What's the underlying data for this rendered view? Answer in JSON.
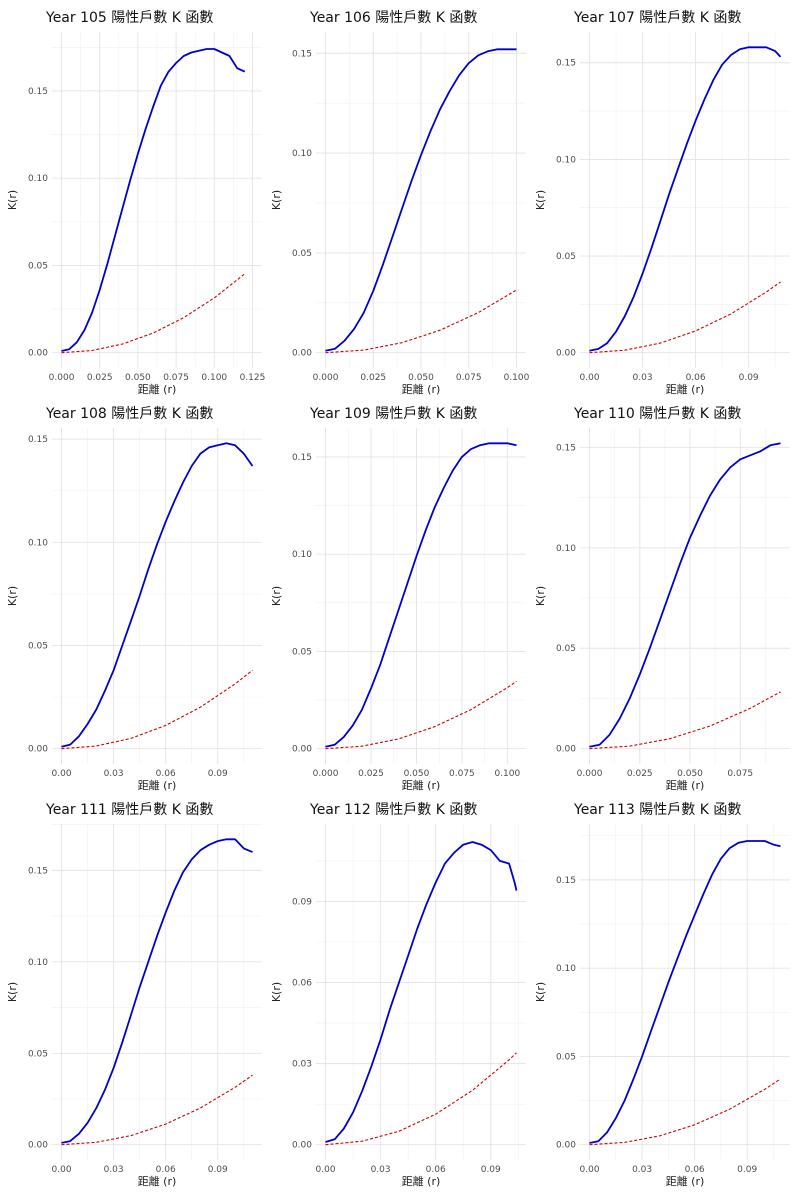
{
  "chart_data": [
    {
      "type": "line",
      "title": "Year 105 陽性戶數 K 函數",
      "xlabel": "距離 (r)",
      "ylabel": "K(r)",
      "xlim": [
        0,
        0.125
      ],
      "ylim": [
        0,
        0.175
      ],
      "xticks": [
        0,
        0.025,
        0.05,
        0.075,
        0.1,
        0.125
      ],
      "xtick_labels": [
        "0.000",
        "0.025",
        "0.050",
        "0.075",
        "0.100",
        "0.125"
      ],
      "yticks": [
        0,
        0.05,
        0.1,
        0.15
      ],
      "ytick_labels": [
        "0.00",
        "0.05",
        "0.10",
        "0.15"
      ],
      "grid": true,
      "legend": false,
      "series": [
        {
          "color": "#0000cc",
          "style": "solid",
          "x": [
            0.0,
            0.005,
            0.01,
            0.015,
            0.02,
            0.025,
            0.03,
            0.035,
            0.04,
            0.045,
            0.05,
            0.055,
            0.06,
            0.065,
            0.07,
            0.075,
            0.08,
            0.085,
            0.09,
            0.095,
            0.1,
            0.105,
            0.11,
            0.115,
            0.12
          ],
          "y": [
            0.001,
            0.002,
            0.006,
            0.013,
            0.023,
            0.036,
            0.051,
            0.067,
            0.083,
            0.099,
            0.114,
            0.128,
            0.141,
            0.153,
            0.161,
            0.166,
            0.17,
            0.172,
            0.173,
            0.174,
            0.174,
            0.172,
            0.17,
            0.163,
            0.161
          ]
        },
        {
          "color": "#cc0000",
          "style": "dashed",
          "x": [
            0.0,
            0.02,
            0.04,
            0.06,
            0.08,
            0.1,
            0.12
          ],
          "y": [
            0.0,
            0.0013,
            0.005,
            0.0113,
            0.0201,
            0.0314,
            0.0452
          ]
        }
      ]
    },
    {
      "type": "line",
      "title": "Year 106 陽性戶數 K 函數",
      "xlabel": "距離 (r)",
      "ylabel": "K(r)",
      "xlim": [
        0,
        0.1
      ],
      "ylim": [
        0,
        0.153
      ],
      "xticks": [
        0,
        0.025,
        0.05,
        0.075,
        0.1
      ],
      "xtick_labels": [
        "0.000",
        "0.025",
        "0.050",
        "0.075",
        "0.100"
      ],
      "yticks": [
        0,
        0.05,
        0.1,
        0.15
      ],
      "ytick_labels": [
        "0.00",
        "0.05",
        "0.10",
        "0.15"
      ],
      "grid": true,
      "legend": false,
      "series": [
        {
          "color": "#0000cc",
          "style": "solid",
          "x": [
            0.0,
            0.005,
            0.01,
            0.015,
            0.02,
            0.025,
            0.03,
            0.035,
            0.04,
            0.045,
            0.05,
            0.055,
            0.06,
            0.065,
            0.07,
            0.075,
            0.08,
            0.085,
            0.09,
            0.095,
            0.1
          ],
          "y": [
            0.001,
            0.002,
            0.006,
            0.012,
            0.02,
            0.031,
            0.044,
            0.058,
            0.072,
            0.086,
            0.099,
            0.111,
            0.122,
            0.131,
            0.139,
            0.145,
            0.149,
            0.151,
            0.152,
            0.152,
            0.152
          ]
        },
        {
          "color": "#cc0000",
          "style": "dashed",
          "x": [
            0.0,
            0.02,
            0.04,
            0.06,
            0.08,
            0.1
          ],
          "y": [
            0.0,
            0.0013,
            0.005,
            0.0113,
            0.0201,
            0.0314
          ]
        }
      ]
    },
    {
      "type": "line",
      "title": "Year 107 陽性戶數 K 函數",
      "xlabel": "距離 (r)",
      "ylabel": "K(r)",
      "xlim": [
        0,
        0.108
      ],
      "ylim": [
        0,
        0.158
      ],
      "xticks": [
        0,
        0.03,
        0.06,
        0.09
      ],
      "xtick_labels": [
        "0.00",
        "0.03",
        "0.06",
        "0.09"
      ],
      "yticks": [
        0,
        0.05,
        0.1,
        0.15
      ],
      "ytick_labels": [
        "0.00",
        "0.05",
        "0.10",
        "0.15"
      ],
      "grid": true,
      "legend": false,
      "series": [
        {
          "color": "#0000cc",
          "style": "solid",
          "x": [
            0.0,
            0.005,
            0.01,
            0.015,
            0.02,
            0.025,
            0.03,
            0.035,
            0.04,
            0.045,
            0.05,
            0.055,
            0.06,
            0.065,
            0.07,
            0.075,
            0.08,
            0.085,
            0.09,
            0.095,
            0.1,
            0.105,
            0.108
          ],
          "y": [
            0.001,
            0.002,
            0.005,
            0.011,
            0.019,
            0.029,
            0.041,
            0.054,
            0.068,
            0.082,
            0.095,
            0.108,
            0.12,
            0.131,
            0.141,
            0.149,
            0.154,
            0.157,
            0.158,
            0.158,
            0.158,
            0.156,
            0.153
          ]
        },
        {
          "color": "#cc0000",
          "style": "dashed",
          "x": [
            0.0,
            0.02,
            0.04,
            0.06,
            0.08,
            0.1,
            0.108
          ],
          "y": [
            0.0,
            0.0013,
            0.005,
            0.0113,
            0.0201,
            0.0314,
            0.0366
          ]
        }
      ]
    },
    {
      "type": "line",
      "title": "Year 108 陽性戶數 K 函數",
      "xlabel": "距離 (r)",
      "ylabel": "K(r)",
      "xlim": [
        0,
        0.11
      ],
      "ylim": [
        0,
        0.148
      ],
      "xticks": [
        0,
        0.03,
        0.06,
        0.09
      ],
      "xtick_labels": [
        "0.00",
        "0.03",
        "0.06",
        "0.09"
      ],
      "yticks": [
        0,
        0.05,
        0.1,
        0.15
      ],
      "ytick_labels": [
        "0.00",
        "0.05",
        "0.10",
        "0.15"
      ],
      "grid": true,
      "legend": false,
      "series": [
        {
          "color": "#0000cc",
          "style": "solid",
          "x": [
            0.0,
            0.005,
            0.01,
            0.015,
            0.02,
            0.025,
            0.03,
            0.035,
            0.04,
            0.045,
            0.05,
            0.055,
            0.06,
            0.065,
            0.07,
            0.075,
            0.08,
            0.085,
            0.09,
            0.095,
            0.1,
            0.105,
            0.11
          ],
          "y": [
            0.001,
            0.002,
            0.006,
            0.012,
            0.019,
            0.028,
            0.038,
            0.05,
            0.062,
            0.074,
            0.087,
            0.099,
            0.11,
            0.12,
            0.129,
            0.137,
            0.143,
            0.146,
            0.147,
            0.148,
            0.147,
            0.143,
            0.137
          ]
        },
        {
          "color": "#cc0000",
          "style": "dashed",
          "x": [
            0.0,
            0.02,
            0.04,
            0.06,
            0.08,
            0.1,
            0.11
          ],
          "y": [
            0.0,
            0.0013,
            0.005,
            0.0113,
            0.0201,
            0.0314,
            0.038
          ]
        }
      ]
    },
    {
      "type": "line",
      "title": "Year 109 陽性戶數 K 函數",
      "xlabel": "距離 (r)",
      "ylabel": "K(r)",
      "xlim": [
        0,
        0.105
      ],
      "ylim": [
        0,
        0.157
      ],
      "xticks": [
        0,
        0.025,
        0.05,
        0.075,
        0.1
      ],
      "xtick_labels": [
        "0.000",
        "0.025",
        "0.050",
        "0.075",
        "0.100"
      ],
      "yticks": [
        0,
        0.05,
        0.1,
        0.15
      ],
      "ytick_labels": [
        "0.00",
        "0.05",
        "0.10",
        "0.15"
      ],
      "grid": true,
      "legend": false,
      "series": [
        {
          "color": "#0000cc",
          "style": "solid",
          "x": [
            0.0,
            0.005,
            0.01,
            0.015,
            0.02,
            0.025,
            0.03,
            0.035,
            0.04,
            0.045,
            0.05,
            0.055,
            0.06,
            0.065,
            0.07,
            0.075,
            0.08,
            0.085,
            0.09,
            0.095,
            0.1,
            0.105
          ],
          "y": [
            0.001,
            0.002,
            0.006,
            0.012,
            0.02,
            0.031,
            0.043,
            0.057,
            0.071,
            0.085,
            0.099,
            0.112,
            0.124,
            0.134,
            0.143,
            0.15,
            0.154,
            0.156,
            0.157,
            0.157,
            0.157,
            0.156
          ]
        },
        {
          "color": "#cc0000",
          "style": "dashed",
          "x": [
            0.0,
            0.02,
            0.04,
            0.06,
            0.08,
            0.1,
            0.105
          ],
          "y": [
            0.0,
            0.0013,
            0.005,
            0.0113,
            0.0201,
            0.0314,
            0.0346
          ]
        }
      ]
    },
    {
      "type": "line",
      "title": "Year 110 陽性戶數 K 函數",
      "xlabel": "距離 (r)",
      "ylabel": "K(r)",
      "xlim": [
        0,
        0.095
      ],
      "ylim": [
        0,
        0.152
      ],
      "xticks": [
        0,
        0.025,
        0.05,
        0.075
      ],
      "xtick_labels": [
        "0.000",
        "0.025",
        "0.050",
        "0.075"
      ],
      "yticks": [
        0,
        0.05,
        0.1,
        0.15
      ],
      "ytick_labels": [
        "0.00",
        "0.05",
        "0.10",
        "0.15"
      ],
      "grid": true,
      "legend": false,
      "series": [
        {
          "color": "#0000cc",
          "style": "solid",
          "x": [
            0.0,
            0.005,
            0.01,
            0.015,
            0.02,
            0.025,
            0.03,
            0.035,
            0.04,
            0.045,
            0.05,
            0.055,
            0.06,
            0.065,
            0.07,
            0.075,
            0.08,
            0.085,
            0.09,
            0.095
          ],
          "y": [
            0.001,
            0.002,
            0.007,
            0.015,
            0.025,
            0.037,
            0.05,
            0.064,
            0.078,
            0.092,
            0.105,
            0.116,
            0.126,
            0.134,
            0.14,
            0.144,
            0.146,
            0.148,
            0.151,
            0.152
          ]
        },
        {
          "color": "#cc0000",
          "style": "dashed",
          "x": [
            0.0,
            0.02,
            0.04,
            0.06,
            0.08,
            0.095
          ],
          "y": [
            0.0,
            0.0013,
            0.005,
            0.0113,
            0.0201,
            0.0283
          ]
        }
      ]
    },
    {
      "type": "line",
      "title": "Year 111 陽性戶數 K 函數",
      "xlabel": "距離 (r)",
      "ylabel": "K(r)",
      "xlim": [
        0,
        0.11
      ],
      "ylim": [
        0,
        0.167
      ],
      "xticks": [
        0,
        0.03,
        0.06,
        0.09
      ],
      "xtick_labels": [
        "0.00",
        "0.03",
        "0.06",
        "0.09"
      ],
      "yticks": [
        0,
        0.05,
        0.1,
        0.15
      ],
      "ytick_labels": [
        "0.00",
        "0.05",
        "0.10",
        "0.15"
      ],
      "grid": true,
      "legend": false,
      "series": [
        {
          "color": "#0000cc",
          "style": "solid",
          "x": [
            0.0,
            0.005,
            0.01,
            0.015,
            0.02,
            0.025,
            0.03,
            0.035,
            0.04,
            0.045,
            0.05,
            0.055,
            0.06,
            0.065,
            0.07,
            0.075,
            0.08,
            0.085,
            0.09,
            0.095,
            0.1,
            0.105,
            0.11
          ],
          "y": [
            0.001,
            0.002,
            0.006,
            0.012,
            0.02,
            0.03,
            0.042,
            0.056,
            0.071,
            0.086,
            0.1,
            0.114,
            0.127,
            0.139,
            0.149,
            0.156,
            0.161,
            0.164,
            0.166,
            0.167,
            0.167,
            0.162,
            0.16
          ]
        },
        {
          "color": "#cc0000",
          "style": "dashed",
          "x": [
            0.0,
            0.02,
            0.04,
            0.06,
            0.08,
            0.1,
            0.11
          ],
          "y": [
            0.0,
            0.0013,
            0.005,
            0.0113,
            0.0201,
            0.0314,
            0.038
          ]
        }
      ]
    },
    {
      "type": "line",
      "title": "Year 112 陽性戶數 K 函數",
      "xlabel": "距離 (r)",
      "ylabel": "K(r)",
      "xlim": [
        0,
        0.104
      ],
      "ylim": [
        0,
        0.113
      ],
      "xticks": [
        0,
        0.03,
        0.06,
        0.09
      ],
      "xtick_labels": [
        "0.00",
        "0.03",
        "0.06",
        "0.09"
      ],
      "yticks": [
        0,
        0.03,
        0.06,
        0.09
      ],
      "ytick_labels": [
        "0.00",
        "0.03",
        "0.06",
        "0.09"
      ],
      "grid": true,
      "legend": false,
      "series": [
        {
          "color": "#0000cc",
          "style": "solid",
          "x": [
            0.0,
            0.005,
            0.01,
            0.015,
            0.02,
            0.025,
            0.03,
            0.035,
            0.04,
            0.045,
            0.05,
            0.055,
            0.06,
            0.065,
            0.07,
            0.075,
            0.08,
            0.085,
            0.09,
            0.095,
            0.1,
            0.103,
            0.104
          ],
          "y": [
            0.001,
            0.002,
            0.006,
            0.012,
            0.02,
            0.029,
            0.039,
            0.05,
            0.06,
            0.07,
            0.08,
            0.089,
            0.097,
            0.104,
            0.108,
            0.111,
            0.112,
            0.111,
            0.109,
            0.105,
            0.104,
            0.097,
            0.094
          ]
        },
        {
          "color": "#cc0000",
          "style": "dashed",
          "x": [
            0.0,
            0.02,
            0.04,
            0.06,
            0.08,
            0.1,
            0.104
          ],
          "y": [
            0.0,
            0.0013,
            0.005,
            0.0113,
            0.0201,
            0.0314,
            0.034
          ]
        }
      ]
    },
    {
      "type": "line",
      "title": "Year 113 陽性戶數 K 函數",
      "xlabel": "距離 (r)",
      "ylabel": "K(r)",
      "xlim": [
        0,
        0.109
      ],
      "ylim": [
        0,
        0.173
      ],
      "xticks": [
        0,
        0.03,
        0.06,
        0.09
      ],
      "xtick_labels": [
        "0.00",
        "0.03",
        "0.06",
        "0.09"
      ],
      "yticks": [
        0,
        0.05,
        0.1,
        0.15
      ],
      "ytick_labels": [
        "0.00",
        "0.05",
        "0.10",
        "0.15"
      ],
      "grid": true,
      "legend": false,
      "series": [
        {
          "color": "#0000cc",
          "style": "solid",
          "x": [
            0.0,
            0.005,
            0.01,
            0.015,
            0.02,
            0.025,
            0.03,
            0.035,
            0.04,
            0.045,
            0.05,
            0.055,
            0.06,
            0.065,
            0.07,
            0.075,
            0.08,
            0.085,
            0.09,
            0.095,
            0.1,
            0.105,
            0.109
          ],
          "y": [
            0.001,
            0.002,
            0.007,
            0.015,
            0.025,
            0.037,
            0.05,
            0.064,
            0.078,
            0.092,
            0.105,
            0.118,
            0.13,
            0.142,
            0.153,
            0.162,
            0.168,
            0.171,
            0.172,
            0.172,
            0.172,
            0.17,
            0.169
          ]
        },
        {
          "color": "#cc0000",
          "style": "dashed",
          "x": [
            0.0,
            0.02,
            0.04,
            0.06,
            0.08,
            0.1,
            0.109
          ],
          "y": [
            0.0,
            0.0013,
            0.005,
            0.0113,
            0.0201,
            0.0314,
            0.0373
          ]
        }
      ]
    }
  ]
}
